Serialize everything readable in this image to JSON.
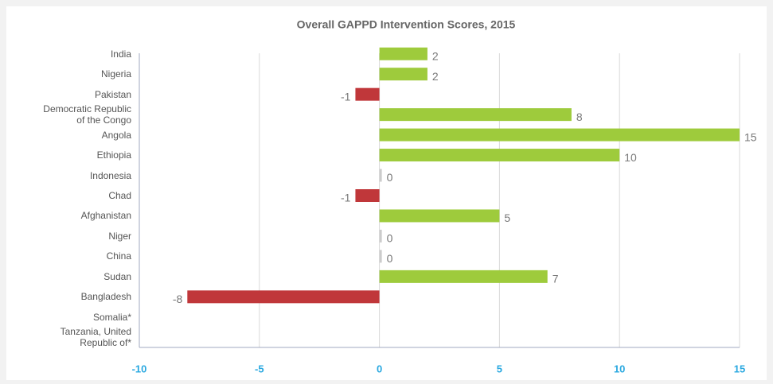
{
  "chart_data": {
    "type": "bar",
    "orientation": "horizontal",
    "title": "Overall GAPPD Intervention Scores, 2015",
    "categories": [
      "India",
      "Nigeria",
      "Pakistan",
      "Democratic Republic\nof the Congo",
      "Angola",
      "Ethiopia",
      "Indonesia",
      "Chad",
      "Afghanistan",
      "Niger",
      "China",
      "Sudan",
      "Bangladesh",
      "Somalia*",
      "Tanzania, United\nRepublic of*"
    ],
    "values": [
      2,
      2,
      -1,
      8,
      15,
      10,
      0,
      -1,
      5,
      0,
      0,
      7,
      -8,
      null,
      null
    ],
    "positive_color": "#9ecb3c",
    "negative_color": "#c0373a",
    "zero_color": "#cccccc",
    "xlim": [
      -10,
      15
    ],
    "xticks": [
      -10,
      -5,
      0,
      5,
      10,
      15
    ],
    "grid": true
  }
}
